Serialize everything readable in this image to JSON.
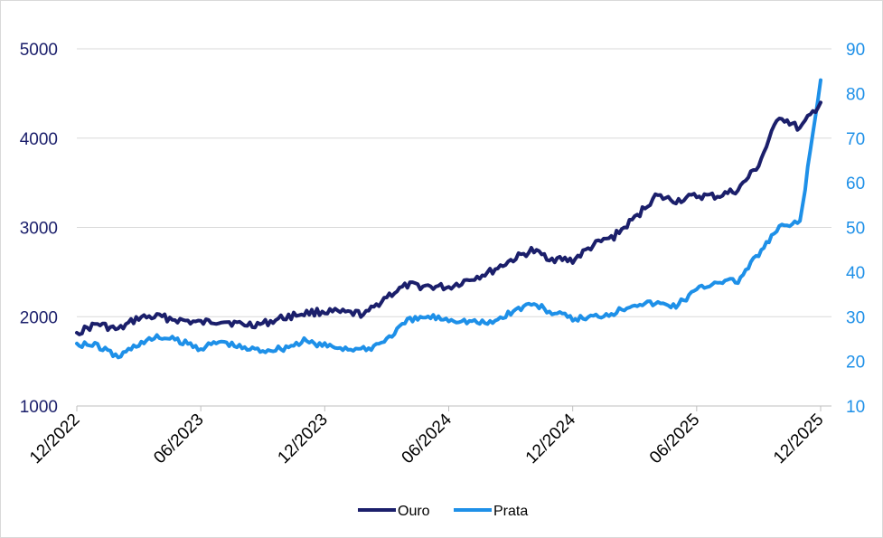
{
  "chart_data": {
    "type": "line",
    "title": "",
    "xlabel": "",
    "ylabel_left": "",
    "ylabel_right": "",
    "x_ticks": [
      "12/2022",
      "06/2023",
      "12/2023",
      "06/2024",
      "12/2024",
      "06/2025",
      "12/2025"
    ],
    "y_left": {
      "ticks": [
        1000,
        2000,
        3000,
        4000,
        5000
      ],
      "range": [
        1000,
        5000
      ]
    },
    "y_right": {
      "ticks": [
        10,
        20,
        30,
        40,
        50,
        60,
        70,
        80,
        90
      ],
      "range": [
        10,
        90
      ]
    },
    "grid": "horizontal",
    "legend_position": "bottom-center",
    "colors": {
      "Ouro": "#1b1f6b",
      "Prata": "#1e90e8",
      "grid": "#d9d9d9"
    },
    "series": [
      {
        "name": "Ouro",
        "axis": "left",
        "x": [
          "12/2022",
          "01/2023",
          "02/2023",
          "03/2023",
          "04/2023",
          "05/2023",
          "06/2023",
          "07/2023",
          "08/2023",
          "09/2023",
          "10/2023",
          "11/2023",
          "12/2023",
          "01/2024",
          "02/2024",
          "03/2024",
          "04/2024",
          "05/2024",
          "06/2024",
          "07/2024",
          "08/2024",
          "09/2024",
          "10/2024",
          "11/2024",
          "12/2024",
          "01/2025",
          "02/2025",
          "03/2025",
          "04/2025",
          "05/2025",
          "06/2025",
          "07/2025",
          "08/2025",
          "09/2025",
          "10/2025",
          "11/2025",
          "12/2025"
        ],
        "values": [
          1820,
          1920,
          1850,
          1990,
          2000,
          1960,
          1930,
          1960,
          1910,
          1920,
          1990,
          2040,
          2060,
          2040,
          2030,
          2230,
          2350,
          2340,
          2330,
          2420,
          2500,
          2630,
          2740,
          2650,
          2630,
          2800,
          2900,
          3100,
          3350,
          3300,
          3350,
          3350,
          3420,
          3700,
          4250,
          4100,
          4400
        ]
      },
      {
        "name": "Prata",
        "axis": "right",
        "x": [
          "12/2022",
          "01/2023",
          "02/2023",
          "03/2023",
          "04/2023",
          "05/2023",
          "06/2023",
          "07/2023",
          "08/2023",
          "09/2023",
          "10/2023",
          "11/2023",
          "12/2023",
          "01/2024",
          "02/2024",
          "03/2024",
          "04/2024",
          "05/2024",
          "06/2024",
          "07/2024",
          "08/2024",
          "09/2024",
          "10/2024",
          "11/2024",
          "12/2024",
          "01/2025",
          "02/2025",
          "03/2025",
          "04/2025",
          "05/2025",
          "06/2025",
          "07/2025",
          "08/2025",
          "09/2025",
          "10/2025",
          "11/2025",
          "12/2025"
        ],
        "values": [
          24,
          23.5,
          21,
          24,
          25.5,
          24.5,
          23,
          24.5,
          23,
          22.5,
          23,
          24.5,
          23.5,
          23,
          22.5,
          25,
          29,
          30,
          29.5,
          29,
          28.5,
          31,
          33,
          31,
          29.5,
          30,
          31,
          33,
          33,
          32.5,
          36,
          38,
          38,
          44,
          50,
          51,
          83
        ]
      }
    ]
  }
}
